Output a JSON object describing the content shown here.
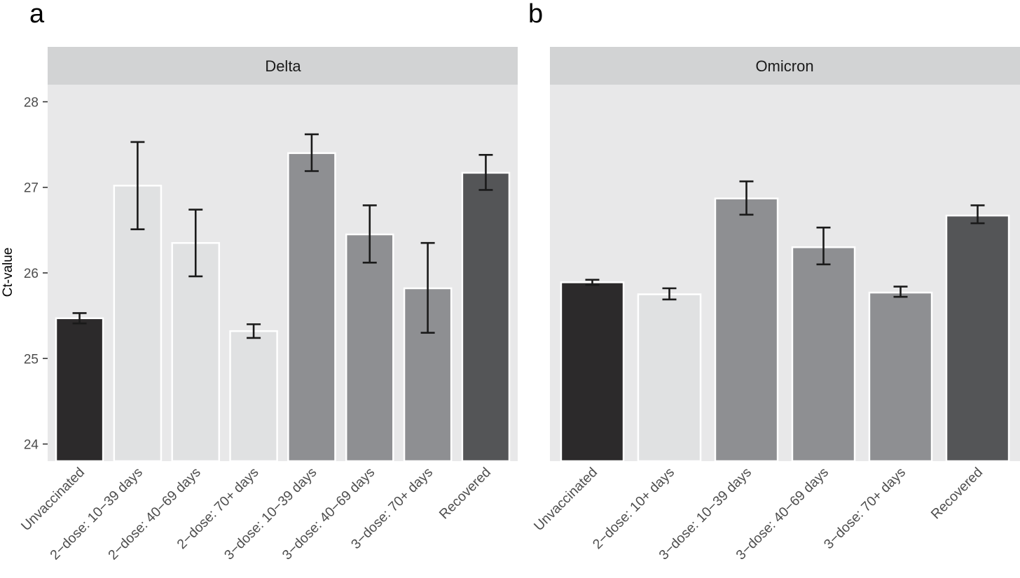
{
  "panel_letters": [
    "a",
    "b"
  ],
  "y_axis_title": "Ct-value",
  "colors": {
    "panel_background": "#e8e8e9",
    "strip_background": "#d2d3d4",
    "unvaccinated": "#2c2a2b",
    "two_dose": "#e0e1e2",
    "three_dose": "#8e8f92",
    "recovered": "#545557",
    "error_bar": "#1a1a1a",
    "bar_outline": "#ffffff"
  },
  "chart_data": [
    {
      "type": "bar",
      "panel": "a",
      "facet": "Delta",
      "ylabel": "Ct-value",
      "ylim": [
        23.8,
        28.2
      ],
      "yticks": [
        "24",
        "25",
        "26",
        "27",
        "28"
      ],
      "categories": [
        "Unvaccinated",
        "2−dose: 10−39 days",
        "2−dose: 40−69 days",
        "2−dose: 70+ days",
        "3−dose: 10−39 days",
        "3−dose: 40−69 days",
        "3−dose: 70+ days",
        "Recovered"
      ],
      "groups": [
        "unvaccinated",
        "two_dose",
        "two_dose",
        "two_dose",
        "three_dose",
        "three_dose",
        "three_dose",
        "recovered"
      ],
      "values": [
        25.47,
        27.02,
        26.35,
        25.32,
        27.4,
        26.45,
        25.82,
        27.17
      ],
      "error_low": [
        25.41,
        26.51,
        25.96,
        25.24,
        27.19,
        26.12,
        25.3,
        26.97
      ],
      "error_high": [
        25.53,
        27.53,
        26.74,
        25.4,
        27.62,
        26.79,
        26.35,
        27.38
      ]
    },
    {
      "type": "bar",
      "panel": "b",
      "facet": "Omicron",
      "ylabel": "Ct-value",
      "ylim": [
        23.8,
        28.2
      ],
      "yticks": [
        "24",
        "25",
        "26",
        "27",
        "28"
      ],
      "categories": [
        "Unvaccinated",
        "2−dose: 10+ days",
        "3−dose: 10−39 days",
        "3−dose: 40−69 days",
        "3−dose: 70+ days",
        "Recovered"
      ],
      "groups": [
        "unvaccinated",
        "two_dose",
        "three_dose",
        "three_dose",
        "three_dose",
        "recovered"
      ],
      "values": [
        25.89,
        25.75,
        26.87,
        26.3,
        25.77,
        26.67
      ],
      "error_low": [
        25.86,
        25.69,
        26.68,
        26.1,
        25.72,
        26.58
      ],
      "error_high": [
        25.92,
        25.82,
        27.07,
        26.53,
        25.84,
        26.79
      ]
    }
  ]
}
